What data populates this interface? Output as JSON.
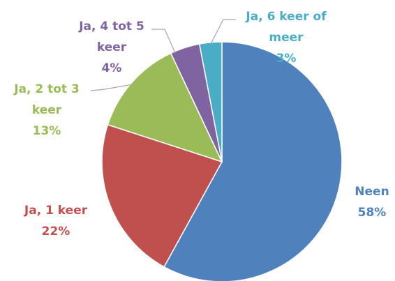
{
  "chart_data": {
    "type": "pie",
    "categories": [
      "Neen",
      "Ja, 1 keer",
      "Ja, 2 tot 3 keer",
      "Ja, 4 tot 5 keer",
      "Ja, 6 keer of meer"
    ],
    "values": [
      58,
      22,
      13,
      4,
      3
    ],
    "value_labels": [
      "58%",
      "22%",
      "13%",
      "4%",
      "3%"
    ],
    "colors": [
      "#4f81bd",
      "#c0504d",
      "#9bbb59",
      "#8064a2",
      "#4bacc6"
    ]
  }
}
